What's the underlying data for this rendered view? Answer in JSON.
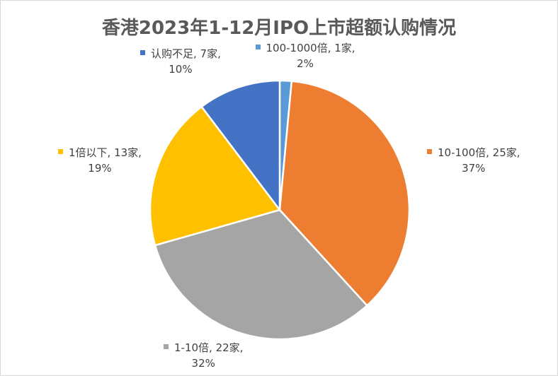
{
  "chart_data": {
    "type": "pie",
    "title": "香港2023年1-12月IPO上市超额认购情况",
    "slices": [
      {
        "category": "100-1000倍",
        "count_label": "1家",
        "value": 1,
        "percent_label": "2%",
        "color": "#5b9bd5"
      },
      {
        "category": "10-100倍",
        "count_label": "25家",
        "value": 25,
        "percent_label": "37%",
        "color": "#ed7d31"
      },
      {
        "category": "1-10倍",
        "count_label": "22家",
        "value": 22,
        "percent_label": "32%",
        "color": "#a5a5a5"
      },
      {
        "category": "1倍以下",
        "count_label": "13家",
        "value": 13,
        "percent_label": "19%",
        "color": "#ffc000"
      },
      {
        "category": "认购不足",
        "count_label": "7家",
        "value": 7,
        "percent_label": "10%",
        "color": "#4472c4"
      }
    ],
    "label_separator": ", "
  }
}
